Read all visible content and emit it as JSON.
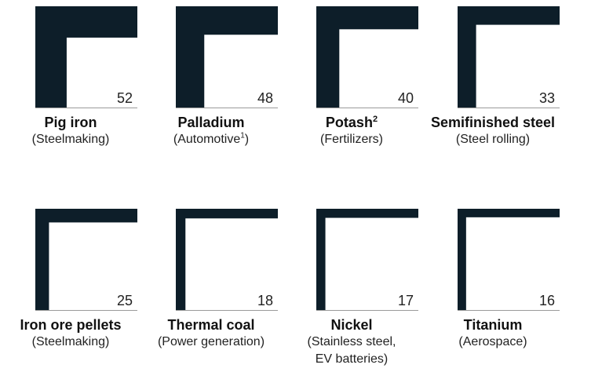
{
  "colors": {
    "fill": "#0d1e29",
    "baseline": "#9a9a9a",
    "background": "#ffffff"
  },
  "chart_data": {
    "type": "square-area",
    "unit_square_value": 100,
    "items": [
      {
        "name": "Pig iron",
        "name_sup": "",
        "use": "(Steelmaking)",
        "use_lines": [
          "(Steelmaking)"
        ],
        "use_sup_after": "",
        "value": 52
      },
      {
        "name": "Palladium",
        "name_sup": "",
        "use": "(Automotive1)",
        "use_lines": [
          "(Automotive"
        ],
        "use_sup_after": "1",
        "use_tail": ")",
        "value": 48
      },
      {
        "name": "Potash",
        "name_sup": "2",
        "use": "(Fertilizers)",
        "use_lines": [
          "(Fertilizers)"
        ],
        "use_sup_after": "",
        "value": 40
      },
      {
        "name": "Semifinished steel",
        "name_sup": "",
        "use": "(Steel rolling)",
        "use_lines": [
          "(Steel rolling)"
        ],
        "use_sup_after": "",
        "value": 33
      },
      {
        "name": "Iron ore pellets",
        "name_sup": "",
        "use": "(Steelmaking)",
        "use_lines": [
          "(Steelmaking)"
        ],
        "use_sup_after": "",
        "value": 25
      },
      {
        "name": "Thermal coal",
        "name_sup": "",
        "use": "(Power generation)",
        "use_lines": [
          "(Power generation)"
        ],
        "use_sup_after": "",
        "value": 18
      },
      {
        "name": "Nickel",
        "name_sup": "",
        "use": "(Stainless steel, EV batteries)",
        "use_lines": [
          "(Stainless steel,",
          "EV batteries)"
        ],
        "use_sup_after": "",
        "value": 17
      },
      {
        "name": "Titanium",
        "name_sup": "",
        "use": "(Aerospace)",
        "use_lines": [
          "(Aerospace)"
        ],
        "use_sup_after": "",
        "value": 16
      }
    ]
  }
}
